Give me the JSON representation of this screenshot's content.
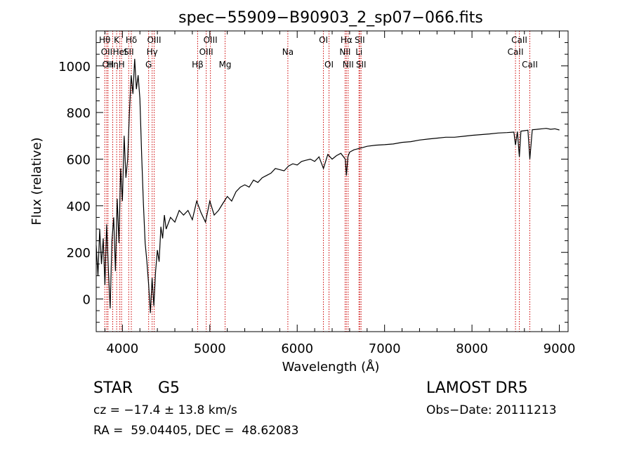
{
  "chart_data": {
    "type": "line",
    "title": "spec−55909−B90903_2_sp07−066.fits",
    "xlabel": "Wavelength (Å)",
    "ylabel": "Flux (relative)",
    "xlim": [
      3700,
      9100
    ],
    "ylim": [
      -140,
      1150
    ],
    "xticks": [
      4000,
      5000,
      6000,
      7000,
      8000,
      9000
    ],
    "yticks": [
      0,
      200,
      400,
      600,
      800,
      1000
    ],
    "grid": false,
    "line_color": "#000000",
    "marker_color": "#cc0000",
    "series": [
      {
        "x": [
          3700,
          3720,
          3740,
          3760,
          3780,
          3800,
          3820,
          3840,
          3860,
          3880,
          3900,
          3920,
          3940,
          3960,
          3980,
          4000,
          4020,
          4040,
          4060,
          4080,
          4100,
          4120,
          4140,
          4160,
          4180,
          4200,
          4220,
          4240,
          4260,
          4280,
          4300,
          4320,
          4340,
          4360,
          4380,
          4400,
          4420,
          4440,
          4460,
          4480,
          4500,
          4550,
          4600,
          4650,
          4700,
          4750,
          4800,
          4850,
          4900,
          4950,
          5000,
          5050,
          5100,
          5150,
          5200,
          5250,
          5300,
          5350,
          5400,
          5450,
          5500,
          5550,
          5600,
          5650,
          5700,
          5750,
          5800,
          5850,
          5900,
          5950,
          6000,
          6050,
          6100,
          6150,
          6200,
          6250,
          6300,
          6350,
          6400,
          6450,
          6500,
          6550,
          6563,
          6580,
          6600,
          6650,
          6700,
          6750,
          6800,
          6900,
          7000,
          7100,
          7200,
          7300,
          7400,
          7500,
          7600,
          7700,
          7800,
          7900,
          8000,
          8100,
          8200,
          8300,
          8400,
          8480,
          8498,
          8520,
          8542,
          8560,
          8600,
          8640,
          8662,
          8690,
          8750,
          8800,
          8850,
          8900,
          8950,
          9000
        ],
        "y": [
          230,
          100,
          300,
          150,
          260,
          60,
          320,
          120,
          -40,
          250,
          350,
          120,
          430,
          240,
          560,
          420,
          700,
          520,
          600,
          800,
          960,
          880,
          1030,
          900,
          960,
          860,
          620,
          410,
          240,
          160,
          60,
          -60,
          90,
          -30,
          120,
          210,
          160,
          310,
          260,
          360,
          300,
          350,
          330,
          380,
          360,
          380,
          340,
          420,
          370,
          330,
          420,
          360,
          380,
          410,
          440,
          420,
          460,
          480,
          490,
          480,
          510,
          500,
          520,
          530,
          540,
          560,
          555,
          550,
          570,
          580,
          575,
          590,
          595,
          600,
          590,
          610,
          560,
          620,
          600,
          615,
          625,
          600,
          530,
          610,
          630,
          640,
          645,
          650,
          655,
          660,
          662,
          665,
          672,
          675,
          682,
          686,
          690,
          694,
          694,
          698,
          702,
          705,
          708,
          712,
          714,
          716,
          660,
          718,
          610,
          720,
          722,
          724,
          600,
          726,
          728,
          730,
          732,
          728,
          730,
          725
        ]
      }
    ],
    "line_markers": [
      {
        "wave": 3798,
        "label": "Hθ",
        "row": 1
      },
      {
        "wave": 3820,
        "label": "OII",
        "row": 2
      },
      {
        "wave": 3835,
        "label": "OII",
        "row": 3
      },
      {
        "wave": 3889,
        "label": "Hη",
        "row": 3
      },
      {
        "wave": 3934,
        "label": "K",
        "row": 1
      },
      {
        "wave": 3970,
        "label": "HeI",
        "row": 2
      },
      {
        "wave": 3990,
        "label": "H",
        "row": 3
      },
      {
        "wave": 4102,
        "label": "Hδ",
        "row": 1
      },
      {
        "wave": 4072,
        "label": "SII",
        "row": 2
      },
      {
        "wave": 4300,
        "label": "G",
        "row": 3
      },
      {
        "wave": 4340,
        "label": "Hγ",
        "row": 2
      },
      {
        "wave": 4363,
        "label": "OIII",
        "row": 1
      },
      {
        "wave": 4861,
        "label": "Hβ",
        "row": 3
      },
      {
        "wave": 4959,
        "label": "OIII",
        "row": 2
      },
      {
        "wave": 5007,
        "label": "OIII",
        "row": 1
      },
      {
        "wave": 5175,
        "label": "Mg",
        "row": 3
      },
      {
        "wave": 5893,
        "label": "Na",
        "row": 2
      },
      {
        "wave": 6300,
        "label": "OI",
        "row": 1
      },
      {
        "wave": 6364,
        "label": "OI",
        "row": 3
      },
      {
        "wave": 6548,
        "label": "NII",
        "row": 2
      },
      {
        "wave": 6563,
        "label": "Hα",
        "row": 1
      },
      {
        "wave": 6583,
        "label": "NII",
        "row": 3
      },
      {
        "wave": 6707,
        "label": "Li",
        "row": 2
      },
      {
        "wave": 6716,
        "label": "SII",
        "row": 1
      },
      {
        "wave": 6731,
        "label": "SII",
        "row": 3
      },
      {
        "wave": 8498,
        "label": "CaII",
        "row": 2
      },
      {
        "wave": 8542,
        "label": "CaII",
        "row": 1
      },
      {
        "wave": 8662,
        "label": "CaII",
        "row": 3
      }
    ]
  },
  "info": {
    "class_label": "STAR",
    "subclass": "G5",
    "survey": "LAMOST DR5",
    "cz": "cz = −17.4 ± 13.8 km/s",
    "obs_date": "Obs−Date: 20111213",
    "radec": "RA =  59.04405, DEC =  48.62083"
  }
}
